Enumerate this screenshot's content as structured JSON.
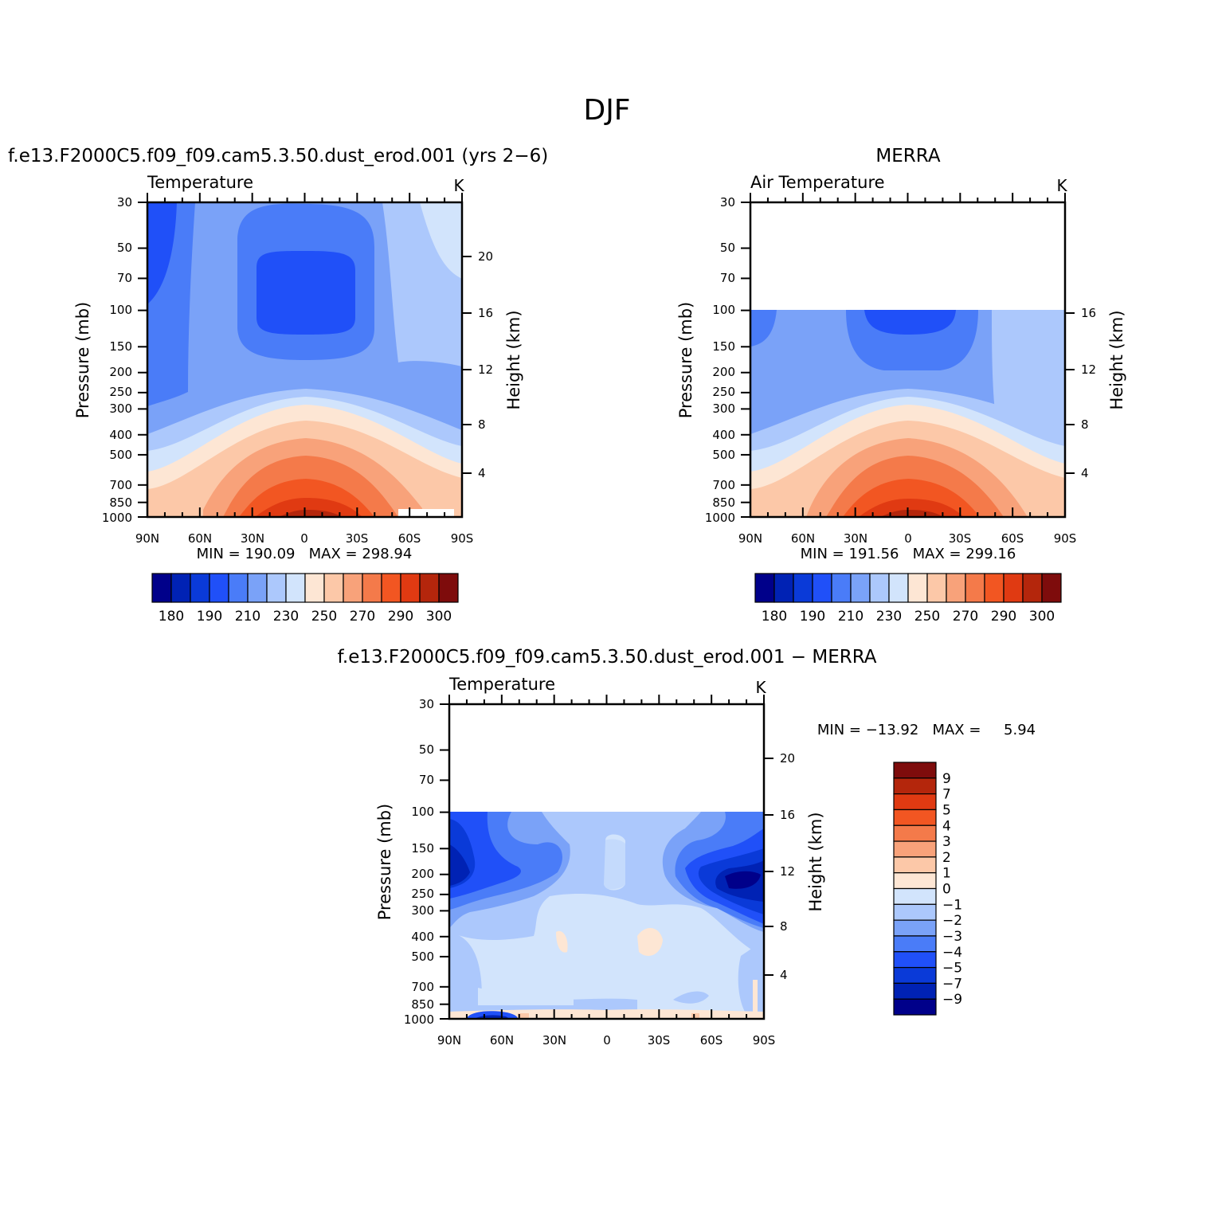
{
  "figure": {
    "title": "DJF",
    "diff_title": "f.e13.F2000C5.f09_f09.cam5.3.50.dust_erod.001 − MERRA"
  },
  "chart_data": [
    {
      "id": "model",
      "type": "heatmap",
      "header": "f.e13.F2000C5.f09_f09.cam5.3.50.dust_erod.001 (yrs 2−6)",
      "variable": "Temperature",
      "units": "K",
      "ylabel": "Pressure (mb)",
      "ylabel_right": "Height (km)",
      "x_ticks": [
        "90N",
        "60N",
        "30N",
        "0",
        "30S",
        "60S",
        "90S"
      ],
      "y_ticks": [
        "30",
        "50",
        "70",
        "100",
        "150",
        "200",
        "250",
        "300",
        "400",
        "500",
        "700",
        "850",
        "1000"
      ],
      "right_ticks": [
        "20",
        "16",
        "12",
        "8",
        "4"
      ],
      "ylim": [
        1000,
        30
      ],
      "data_top_pressure": 30,
      "stats": "MIN = 190.09   MAX = 298.94",
      "min": 190.09,
      "max": 298.94
    },
    {
      "id": "obs",
      "type": "heatmap",
      "header": "MERRA",
      "variable": "Air Temperature",
      "units": "K",
      "ylabel": "Pressure (mb)",
      "ylabel_right": "Height (km)",
      "x_ticks": [
        "90N",
        "60N",
        "30N",
        "0",
        "30S",
        "60S",
        "90S"
      ],
      "y_ticks": [
        "30",
        "50",
        "70",
        "100",
        "150",
        "200",
        "250",
        "300",
        "400",
        "500",
        "700",
        "850",
        "1000"
      ],
      "right_ticks": [
        "16",
        "12",
        "8",
        "4"
      ],
      "ylim": [
        1000,
        30
      ],
      "data_top_pressure": 100,
      "stats": "MIN = 191.56   MAX = 299.16",
      "min": 191.56,
      "max": 299.16
    },
    {
      "id": "diff",
      "type": "heatmap",
      "variable": "Temperature",
      "units": "K",
      "ylabel": "Pressure (mb)",
      "ylabel_right": "Height (km)",
      "x_ticks": [
        "90N",
        "60N",
        "30N",
        "0",
        "30S",
        "60S",
        "90S"
      ],
      "y_ticks": [
        "30",
        "50",
        "70",
        "100",
        "150",
        "200",
        "250",
        "300",
        "400",
        "500",
        "700",
        "850",
        "1000"
      ],
      "right_ticks": [
        "20",
        "16",
        "12",
        "8",
        "4"
      ],
      "ylim": [
        1000,
        30
      ],
      "data_top_pressure": 100,
      "stats": "MIN = −13.92   MAX =     5.94",
      "min": -13.92,
      "max": 5.94
    }
  ],
  "colorbar_abs": {
    "labels": [
      "180",
      "190",
      "210",
      "230",
      "250",
      "270",
      "290",
      "300"
    ],
    "colors": [
      "#00008a",
      "#0022b4",
      "#0a3ad8",
      "#2050f8",
      "#4a7cf8",
      "#7aa2f8",
      "#acc8fc",
      "#d2e4fc",
      "#fde6d4",
      "#fcc8a8",
      "#f8a27a",
      "#f47a4a",
      "#f25622",
      "#e03a12",
      "#b4260c",
      "#7e0c0c"
    ]
  },
  "colorbar_diff": {
    "labels": [
      "9",
      "7",
      "5",
      "4",
      "3",
      "2",
      "1",
      "0",
      "−1",
      "−2",
      "−3",
      "−4",
      "−5",
      "−7",
      "−9"
    ],
    "colors": [
      "#7e0c0c",
      "#b4260c",
      "#e03a12",
      "#f25622",
      "#f47a4a",
      "#f8a27a",
      "#fcc8a8",
      "#fde6d4",
      "#d2e4fc",
      "#acc8fc",
      "#7aa2f8",
      "#4a7cf8",
      "#2050f8",
      "#0a3ad8",
      "#0022b4",
      "#00008a"
    ]
  }
}
